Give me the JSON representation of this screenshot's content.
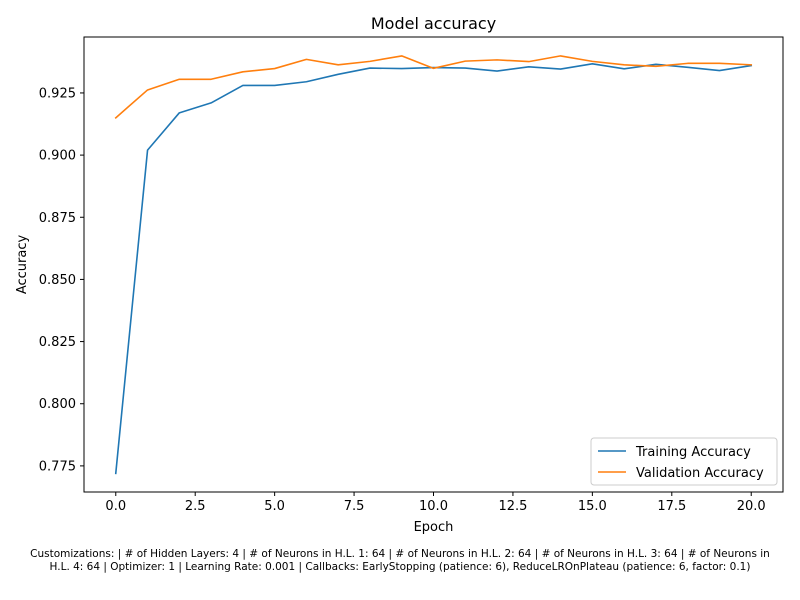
{
  "chart_data": {
    "type": "line",
    "title": "Model accuracy",
    "xlabel": "Epoch",
    "ylabel": "Accuracy",
    "xlim": [
      -1.0,
      21.0
    ],
    "ylim": [
      0.7645,
      0.9475
    ],
    "xticks": [
      0.0,
      2.5,
      5.0,
      7.5,
      10.0,
      12.5,
      15.0,
      17.5,
      20.0
    ],
    "xtick_labels": [
      "0.0",
      "2.5",
      "5.0",
      "7.5",
      "10.0",
      "12.5",
      "15.0",
      "17.5",
      "20.0"
    ],
    "yticks": [
      0.775,
      0.8,
      0.825,
      0.85,
      0.875,
      0.9,
      0.925
    ],
    "ytick_labels": [
      "0.775",
      "0.800",
      "0.825",
      "0.850",
      "0.875",
      "0.900",
      "0.925"
    ],
    "grid": false,
    "legend_position": "lower-right",
    "x": [
      0,
      1,
      2,
      3,
      4,
      5,
      6,
      7,
      8,
      9,
      10,
      11,
      12,
      13,
      14,
      15,
      16,
      17,
      18,
      19,
      20
    ],
    "series": [
      {
        "name": "Training Accuracy",
        "color": "#1f77b4",
        "values": [
          0.772,
          0.902,
          0.917,
          0.921,
          0.928,
          0.928,
          0.9295,
          0.9325,
          0.935,
          0.9348,
          0.9352,
          0.935,
          0.9338,
          0.9355,
          0.9346,
          0.9367,
          0.9347,
          0.9365,
          0.9353,
          0.934,
          0.936
        ]
      },
      {
        "name": "Validation Accuracy",
        "color": "#ff7f0e",
        "values": [
          0.915,
          0.9262,
          0.9305,
          0.9305,
          0.9335,
          0.9348,
          0.9385,
          0.9363,
          0.9377,
          0.9399,
          0.9349,
          0.9378,
          0.9383,
          0.9376,
          0.9399,
          0.9377,
          0.9363,
          0.9357,
          0.9369,
          0.9369,
          0.9363
        ]
      }
    ]
  },
  "caption": {
    "line1": "Customizations: | # of Hidden Layers: 4 | # of Neurons in H.L. 1: 64 | # of Neurons in H.L. 2: 64 | # of Neurons in H.L. 3: 64 | # of Neurons in",
    "line2": "H.L. 4: 64 | Optimizer: 1 | Learning Rate: 0.001 | Callbacks: EarlyStopping (patience: 6), ReduceLROnPlateau (patience: 6, factor: 0.1)"
  }
}
